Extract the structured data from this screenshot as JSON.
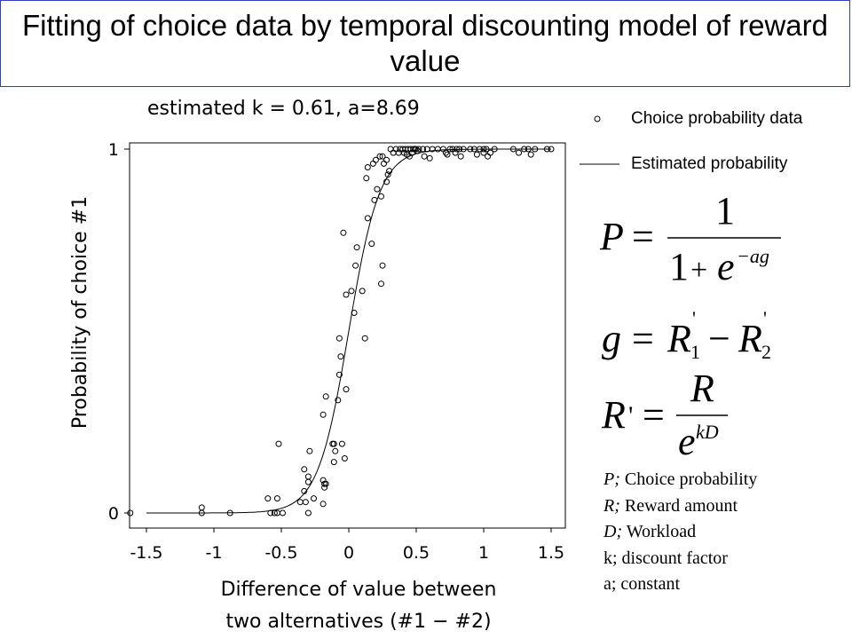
{
  "title": "Fitting of choice data by temporal discounting model of reward value",
  "estimate_text": "estimated k = 0.61, a=8.69",
  "legend": {
    "data_label": "Choice probability data",
    "line_label": "Estimated probability"
  },
  "definitions": [
    {
      "sym": "P;",
      "text": " Choice probability"
    },
    {
      "sym": "R;",
      "text": " Reward amount"
    },
    {
      "sym": "D;",
      "text": " Workload"
    },
    {
      "sym": "",
      "text": "k; discount factor"
    },
    {
      "sym": "",
      "text": "a; constant"
    }
  ],
  "chart_data": {
    "type": "scatter",
    "xlabel": "Difference of value between two alternatives (#1 − #2)",
    "ylabel": "Probability of choice #1",
    "xlim": [
      -1.5,
      1.5
    ],
    "ylim": [
      0,
      1
    ],
    "x_ticks": [
      -1.5,
      -1,
      -0.5,
      0,
      0.5,
      1,
      1.5
    ],
    "x_tick_labels": [
      "-1.5",
      "-1",
      "-0.5",
      "0",
      "0.5",
      "1",
      "1.5"
    ],
    "y_ticks": [
      0,
      1
    ],
    "y_tick_labels": [
      "0",
      "1"
    ],
    "grid": false,
    "legend_position": "right",
    "series": [
      {
        "name": "Choice probability data",
        "type": "scatter",
        "points": [
          [
            -1.62,
            0.0
          ],
          [
            -1.09,
            0.015
          ],
          [
            -1.09,
            0.0
          ],
          [
            -0.88,
            0.0
          ],
          [
            -0.6,
            0.04
          ],
          [
            -0.58,
            0.0
          ],
          [
            -0.55,
            0.0
          ],
          [
            -0.53,
            0.0
          ],
          [
            -0.53,
            0.04
          ],
          [
            -0.52,
            0.19
          ],
          [
            -0.49,
            0.0
          ],
          [
            -0.36,
            0.03
          ],
          [
            -0.33,
            0.06
          ],
          [
            -0.33,
            0.12
          ],
          [
            -0.32,
            0.03
          ],
          [
            -0.3,
            0.0
          ],
          [
            -0.3,
            0.085
          ],
          [
            -0.3,
            0.1
          ],
          [
            -0.29,
            0.17
          ],
          [
            -0.26,
            0.04
          ],
          [
            -0.19,
            0.025
          ],
          [
            -0.19,
            0.09
          ],
          [
            -0.18,
            0.08
          ],
          [
            -0.18,
            0.07
          ],
          [
            -0.17,
            0.08
          ],
          [
            -0.19,
            0.27
          ],
          [
            -0.17,
            0.32
          ],
          [
            -0.12,
            0.19
          ],
          [
            -0.11,
            0.19
          ],
          [
            -0.11,
            0.14
          ],
          [
            -0.1,
            0.17
          ],
          [
            -0.08,
            0.31
          ],
          [
            -0.07,
            0.38
          ],
          [
            -0.06,
            0.43
          ],
          [
            -0.07,
            0.48
          ],
          [
            -0.05,
            0.19
          ],
          [
            -0.04,
            0.77
          ],
          [
            -0.03,
            0.15
          ],
          [
            -0.02,
            0.6
          ],
          [
            -0.02,
            0.34
          ],
          [
            0.02,
            0.61
          ],
          [
            0.04,
            0.55
          ],
          [
            0.05,
            0.68
          ],
          [
            0.06,
            0.73
          ],
          [
            0.1,
            0.61
          ],
          [
            0.12,
            0.48
          ],
          [
            0.14,
            0.81
          ],
          [
            0.17,
            0.74
          ],
          [
            0.19,
            0.86
          ],
          [
            0.21,
            0.89
          ],
          [
            0.24,
            0.87
          ],
          [
            0.24,
            0.63
          ],
          [
            0.25,
            0.68
          ],
          [
            0.26,
            0.96
          ],
          [
            0.28,
            0.97
          ],
          [
            0.29,
            0.93
          ],
          [
            0.28,
            0.91
          ],
          [
            0.3,
            0.94
          ],
          [
            0.13,
            0.92
          ],
          [
            0.14,
            0.95
          ],
          [
            0.18,
            0.96
          ],
          [
            0.2,
            0.97
          ],
          [
            0.23,
            0.98
          ],
          [
            0.25,
            0.98
          ],
          [
            0.31,
            1.0
          ],
          [
            0.33,
            0.99
          ],
          [
            0.35,
            1.0
          ],
          [
            0.37,
            0.99
          ],
          [
            0.38,
            1.0
          ],
          [
            0.4,
            1.0
          ],
          [
            0.41,
            0.99
          ],
          [
            0.42,
            1.0
          ],
          [
            0.43,
            0.985
          ],
          [
            0.44,
            1.0
          ],
          [
            0.45,
            0.98
          ],
          [
            0.46,
            1.0
          ],
          [
            0.47,
            0.99
          ],
          [
            0.48,
            1.0
          ],
          [
            0.49,
            1.0
          ],
          [
            0.5,
            1.0
          ],
          [
            0.51,
            0.995
          ],
          [
            0.52,
            1.0
          ],
          [
            0.55,
            1.0
          ],
          [
            0.56,
            0.98
          ],
          [
            0.58,
            1.0
          ],
          [
            0.6,
            0.975
          ],
          [
            0.62,
            1.0
          ],
          [
            0.66,
            1.0
          ],
          [
            0.7,
            1.0
          ],
          [
            0.72,
            0.99
          ],
          [
            0.73,
            0.985
          ],
          [
            0.75,
            1.0
          ],
          [
            0.77,
            1.0
          ],
          [
            0.79,
            0.99
          ],
          [
            0.8,
            1.0
          ],
          [
            0.82,
            1.0
          ],
          [
            0.83,
            0.98
          ],
          [
            0.85,
            1.0
          ],
          [
            0.9,
            1.0
          ],
          [
            0.93,
            1.0
          ],
          [
            0.95,
            0.985
          ],
          [
            0.97,
            1.0
          ],
          [
            1.0,
            1.0
          ],
          [
            1.0,
            0.99
          ],
          [
            1.02,
            1.0
          ],
          [
            1.03,
            0.98
          ],
          [
            1.05,
            0.99
          ],
          [
            1.08,
            1.0
          ],
          [
            1.22,
            1.0
          ],
          [
            1.26,
            0.99
          ],
          [
            1.3,
            1.0
          ],
          [
            1.33,
            1.0
          ],
          [
            1.35,
            0.985
          ],
          [
            1.38,
            1.0
          ],
          [
            1.47,
            1.0
          ],
          [
            1.5,
            1.0
          ]
        ]
      },
      {
        "name": "Estimated probability",
        "type": "line",
        "function": "logistic",
        "a": 8.69,
        "x_range": [
          -1.5,
          1.5
        ]
      }
    ]
  },
  "formulas": {
    "f1_lhs": "P",
    "f1_eq": "=",
    "f1_num": "1",
    "f1_den_1": "1",
    "f1_den_plus": "+",
    "f1_den_e": "e",
    "f1_den_exp": "−ag",
    "f2_lhs": "g",
    "f2_eq": "=",
    "f2_r1": "R",
    "f2_r1_sup": "'",
    "f2_r1_sub": "1",
    "f2_minus": "−",
    "f2_r2": "R",
    "f2_r2_sup": "'",
    "f2_r2_sub": "2",
    "f3_lhs": "R",
    "f3_prime": "'",
    "f3_eq": "=",
    "f3_num": "R",
    "f3_den_e": "e",
    "f3_den_exp": "kD"
  }
}
